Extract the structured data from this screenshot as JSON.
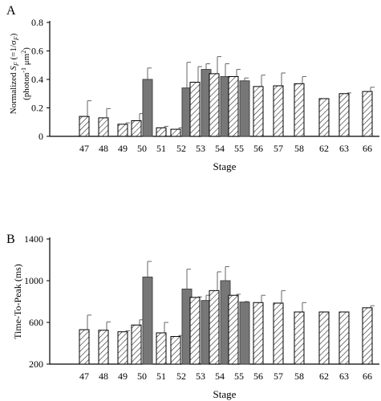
{
  "colors": {
    "gray_bar": "#777777",
    "hatched_fill": "#ffffff",
    "hatch_line": "#333333",
    "axis": "#000000",
    "error_bar": "#666666"
  },
  "chart_data": [
    {
      "panel_label": "A",
      "type": "bar",
      "ylabel_line1_pre": "Normalized ",
      "ylabel_line1_symbol": "S",
      "ylabel_line1_sub": "F",
      "ylabel_line1_mid": " (=1/σ",
      "ylabel_line1_sub2": "F",
      "ylabel_line1_post": ")",
      "ylabel_line2_pre": "(photon",
      "ylabel_line2_sup": "-1",
      "ylabel_line2_post": " μm",
      "ylabel_line2_sup2": "2",
      "ylabel_line2_end": ")",
      "xlabel": "Stage",
      "ylim": [
        0,
        0.8
      ],
      "yticks": [
        "0",
        "0.2",
        "0.4",
        "0.6",
        "0.8"
      ],
      "ytick_values": [
        0,
        0.2,
        0.4,
        0.6,
        0.8
      ],
      "stages": [
        "47",
        "48",
        "49",
        "50",
        "51",
        "52",
        "53",
        "54",
        "55",
        "56",
        "57",
        "58",
        "62",
        "63",
        "66"
      ],
      "series": [
        {
          "pattern": "hatched",
          "values": [
            0.14,
            0.13,
            0.085,
            0.11,
            0.06,
            0.05,
            0.38,
            0.44,
            0.42,
            0.35,
            0.355,
            0.37,
            0.265,
            0.3,
            0.315
          ],
          "errors": [
            0.11,
            0.065,
            0.01,
            0.05,
            0.01,
            0.01,
            0.11,
            0.12,
            0.05,
            0.08,
            0.09,
            0.05,
            0.0,
            0.005,
            0.03
          ]
        },
        {
          "pattern": "solid",
          "values": [
            null,
            null,
            null,
            0.4,
            null,
            0.34,
            0.47,
            0.42,
            0.39,
            null,
            null,
            null,
            null,
            null,
            null
          ],
          "errors": [
            null,
            null,
            null,
            0.08,
            null,
            0.18,
            0.04,
            0.09,
            0.02,
            null,
            null,
            null,
            null,
            null,
            null
          ]
        }
      ]
    },
    {
      "panel_label": "B",
      "type": "bar",
      "ylabel": "Time-To-Peak (ms)",
      "xlabel": "Stage",
      "ylim": [
        200,
        1400
      ],
      "yticks": [
        "200",
        "600",
        "1000",
        "1400"
      ],
      "ytick_values": [
        200,
        600,
        1000,
        1400
      ],
      "stages": [
        "47",
        "48",
        "49",
        "50",
        "51",
        "52",
        "53",
        "54",
        "55",
        "56",
        "57",
        "58",
        "62",
        "63",
        "66"
      ],
      "series": [
        {
          "pattern": "hatched",
          "values": [
            530,
            525,
            510,
            575,
            500,
            465,
            840,
            905,
            860,
            790,
            785,
            700,
            700,
            700,
            740
          ],
          "errors": [
            140,
            80,
            10,
            50,
            100,
            10,
            5,
            180,
            10,
            70,
            120,
            90,
            0,
            0,
            20
          ]
        },
        {
          "pattern": "solid",
          "values": [
            null,
            null,
            null,
            1035,
            null,
            920,
            810,
            1000,
            795,
            null,
            null,
            null,
            null,
            null,
            null
          ],
          "errors": [
            null,
            null,
            null,
            150,
            null,
            190,
            50,
            135,
            5,
            null,
            null,
            null,
            null,
            null,
            null
          ]
        }
      ]
    }
  ]
}
